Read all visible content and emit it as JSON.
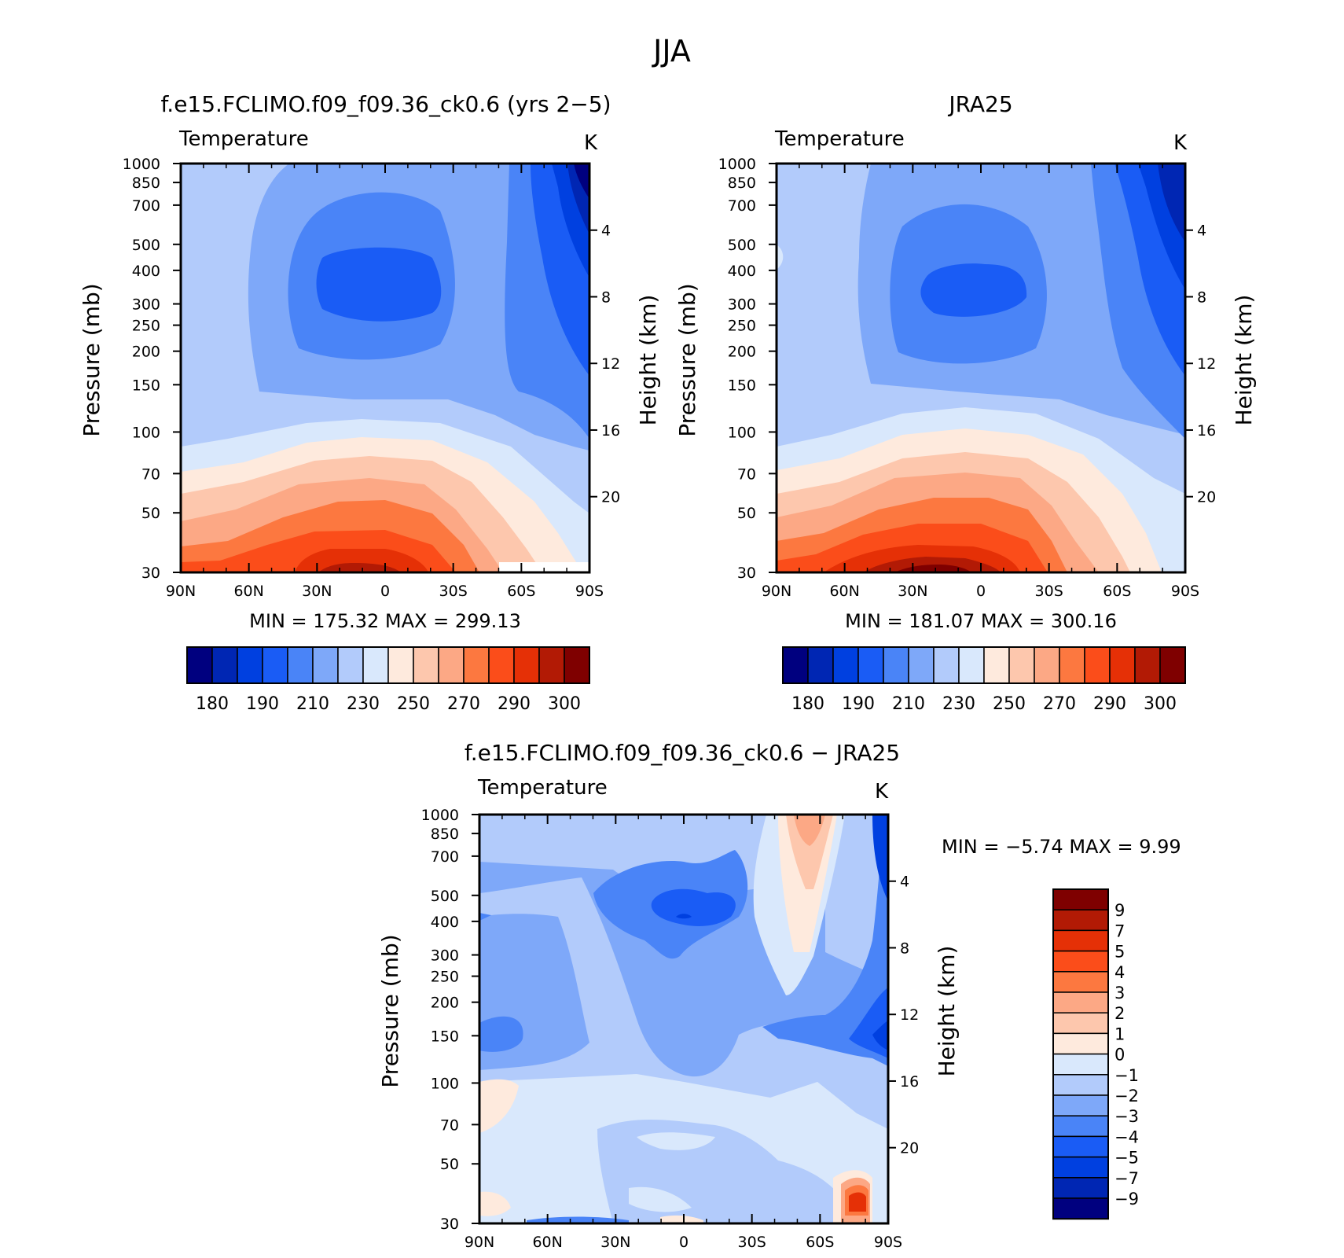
{
  "page_title": "JJA",
  "chart_data": [
    {
      "type": "heatmap",
      "title": "f.e15.FCLIMO.f09_f09.36_ck0.6 (yrs 2−5)",
      "subtitle": "Temperature",
      "units": "K",
      "xlabel": "",
      "ylabel": "Pressure (mb)",
      "ylabel_right": "Height (km)",
      "x_ticks": [
        "90N",
        "60N",
        "30N",
        "0",
        "30S",
        "60S",
        "90S"
      ],
      "y_ticks": [
        "30",
        "50",
        "70",
        "100",
        "150",
        "200",
        "250",
        "300",
        "400",
        "500",
        "700",
        "850",
        "1000"
      ],
      "y_ticks_right": [
        "20",
        "16",
        "12",
        "8",
        "4"
      ],
      "y_scale": "log",
      "ylim": [
        1000,
        30
      ],
      "min_label": "MIN",
      "min_value": "175.32",
      "max_label": "MAX",
      "max_value": "299.13",
      "colorbar_labels": [
        "180",
        "190",
        "210",
        "230",
        "250",
        "270",
        "290",
        "300"
      ],
      "contour_levels": [
        180,
        185,
        190,
        200,
        210,
        220,
        230,
        240,
        250,
        260,
        270,
        280,
        290,
        295,
        300
      ]
    },
    {
      "type": "heatmap",
      "title": "JRA25",
      "subtitle": "Temperature",
      "units": "K",
      "xlabel": "",
      "ylabel": "Pressure (mb)",
      "ylabel_right": "Height (km)",
      "x_ticks": [
        "90N",
        "60N",
        "30N",
        "0",
        "30S",
        "60S",
        "90S"
      ],
      "y_ticks": [
        "30",
        "50",
        "70",
        "100",
        "150",
        "200",
        "250",
        "300",
        "400",
        "500",
        "700",
        "850",
        "1000"
      ],
      "y_ticks_right": [
        "20",
        "16",
        "12",
        "8",
        "4"
      ],
      "y_scale": "log",
      "ylim": [
        1000,
        30
      ],
      "min_label": "MIN",
      "min_value": "181.07",
      "max_label": "MAX",
      "max_value": "300.16",
      "colorbar_labels": [
        "180",
        "190",
        "210",
        "230",
        "250",
        "270",
        "290",
        "300"
      ],
      "contour_levels": [
        180,
        185,
        190,
        200,
        210,
        220,
        230,
        240,
        250,
        260,
        270,
        280,
        290,
        295,
        300
      ]
    },
    {
      "type": "heatmap",
      "title": "f.e15.FCLIMO.f09_f09.36_ck0.6 − JRA25",
      "subtitle": "Temperature",
      "units": "K",
      "xlabel": "",
      "ylabel": "Pressure (mb)",
      "ylabel_right": "Height (km)",
      "x_ticks": [
        "90N",
        "60N",
        "30N",
        "0",
        "30S",
        "60S",
        "90S"
      ],
      "y_ticks": [
        "30",
        "50",
        "70",
        "100",
        "150",
        "200",
        "250",
        "300",
        "400",
        "500",
        "700",
        "850",
        "1000"
      ],
      "y_ticks_right": [
        "20",
        "16",
        "12",
        "8",
        "4"
      ],
      "y_scale": "log",
      "ylim": [
        1000,
        30
      ],
      "min_label": "MIN",
      "min_value": "−5.74",
      "max_label": "MAX",
      "max_value": "9.99",
      "colorbar_labels": [
        "9",
        "7",
        "5",
        "4",
        "3",
        "2",
        "1",
        "0",
        "−1",
        "−2",
        "−3",
        "−4",
        "−5",
        "−7",
        "−9"
      ]
    }
  ],
  "palette": {
    "temperature": [
      "#00007f",
      "#0026b3",
      "#0040e0",
      "#1a5cf5",
      "#4a84f7",
      "#7ea8f9",
      "#b2cbfb",
      "#d9e8fc",
      "#feeadd",
      "#fdc7ad",
      "#fca885",
      "#fc7840",
      "#fb4d1a",
      "#e53006",
      "#b21a05",
      "#7f0000"
    ],
    "difference": [
      "#7f0000",
      "#b21a05",
      "#e53006",
      "#fb4d1a",
      "#fc7840",
      "#fca885",
      "#fdc7ad",
      "#feeadd",
      "#d9e8fc",
      "#b2cbfb",
      "#7ea8f9",
      "#4a84f7",
      "#1a5cf5",
      "#0040e0",
      "#0026b3",
      "#00007f"
    ]
  }
}
